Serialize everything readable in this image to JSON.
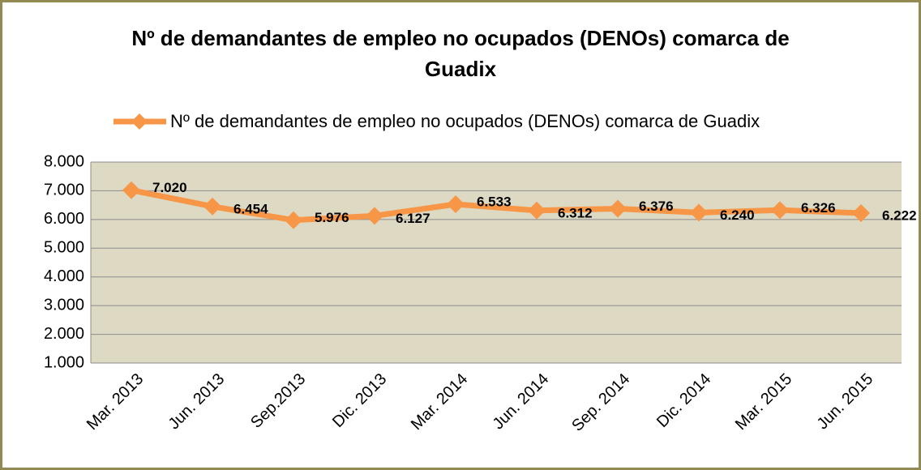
{
  "chart_data": {
    "type": "line",
    "title": "Nº de demandantes de empleo no ocupados (DENOs) comarca de Guadix",
    "categories": [
      "Mar. 2013",
      "Jun. 2013",
      "Sep.2013",
      "Dic. 2013",
      "Mar. 2014",
      "Jun. 2014",
      "Sep. 2014",
      "Dic. 2014",
      "Mar. 2015",
      "Jun. 2015"
    ],
    "series": [
      {
        "name": "Nº de demandantes de empleo no ocupados (DENOs) comarca de Guadix",
        "color": "#f79646",
        "values": [
          7020,
          6454,
          5976,
          6127,
          6533,
          6312,
          6376,
          6240,
          6326,
          6222
        ],
        "value_labels": [
          "7.020",
          "6.454",
          "5.976",
          "6.127",
          "6.533",
          "6.312",
          "6.376",
          "6.240",
          "6.326",
          "6.222"
        ]
      }
    ],
    "ylim": [
      1000,
      8000
    ],
    "yticks": [
      {
        "value": 1000,
        "label": "1.000"
      },
      {
        "value": 2000,
        "label": "2.000"
      },
      {
        "value": 3000,
        "label": "3.000"
      },
      {
        "value": 4000,
        "label": "4.000"
      },
      {
        "value": 5000,
        "label": "5.000"
      },
      {
        "value": 6000,
        "label": "6.000"
      },
      {
        "value": 7000,
        "label": "7.000"
      },
      {
        "value": 8000,
        "label": "8.000"
      }
    ],
    "grid": true,
    "legend": "top"
  }
}
